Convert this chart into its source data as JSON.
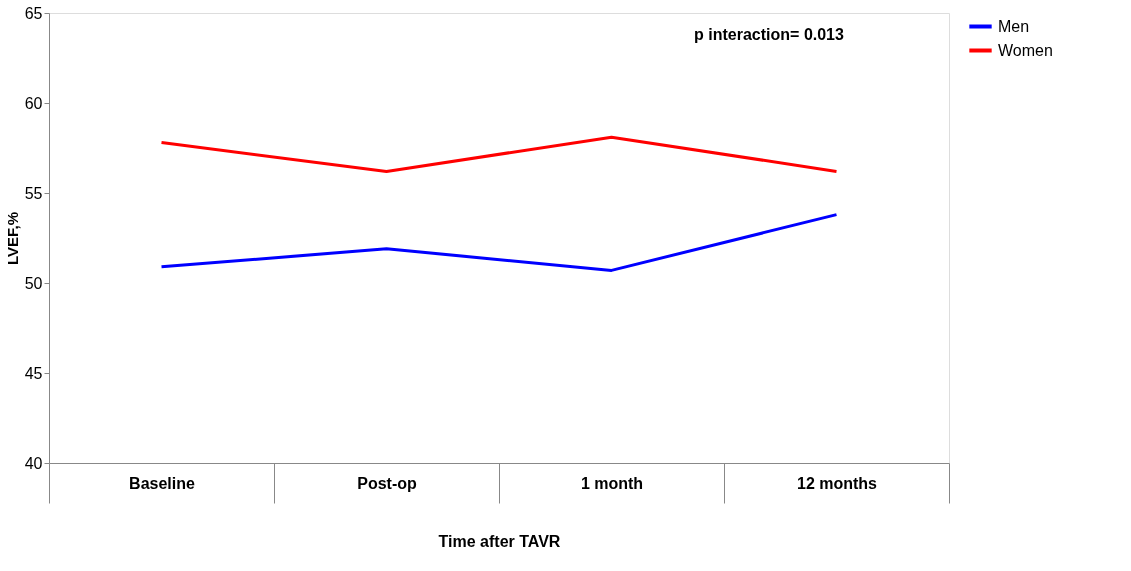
{
  "chart_data": {
    "type": "line",
    "xlabel": "Time after TAVR",
    "ylabel": "LVEF,%",
    "categories": [
      "Baseline",
      "Post-op",
      "1 month",
      "12 months"
    ],
    "series": [
      {
        "name": "Men",
        "color": "#0000ff",
        "values": [
          50.9,
          51.9,
          50.7,
          53.8
        ]
      },
      {
        "name": "Women",
        "color": "#ff0000",
        "values": [
          57.8,
          56.2,
          58.1,
          56.2
        ]
      }
    ],
    "ylim": [
      40,
      65
    ],
    "yticks": [
      40,
      45,
      50,
      55,
      60,
      65
    ],
    "grid": false,
    "legend": "right",
    "marker": "none",
    "line_style": "solid",
    "annotations": [
      "p interaction= 0.013"
    ]
  }
}
